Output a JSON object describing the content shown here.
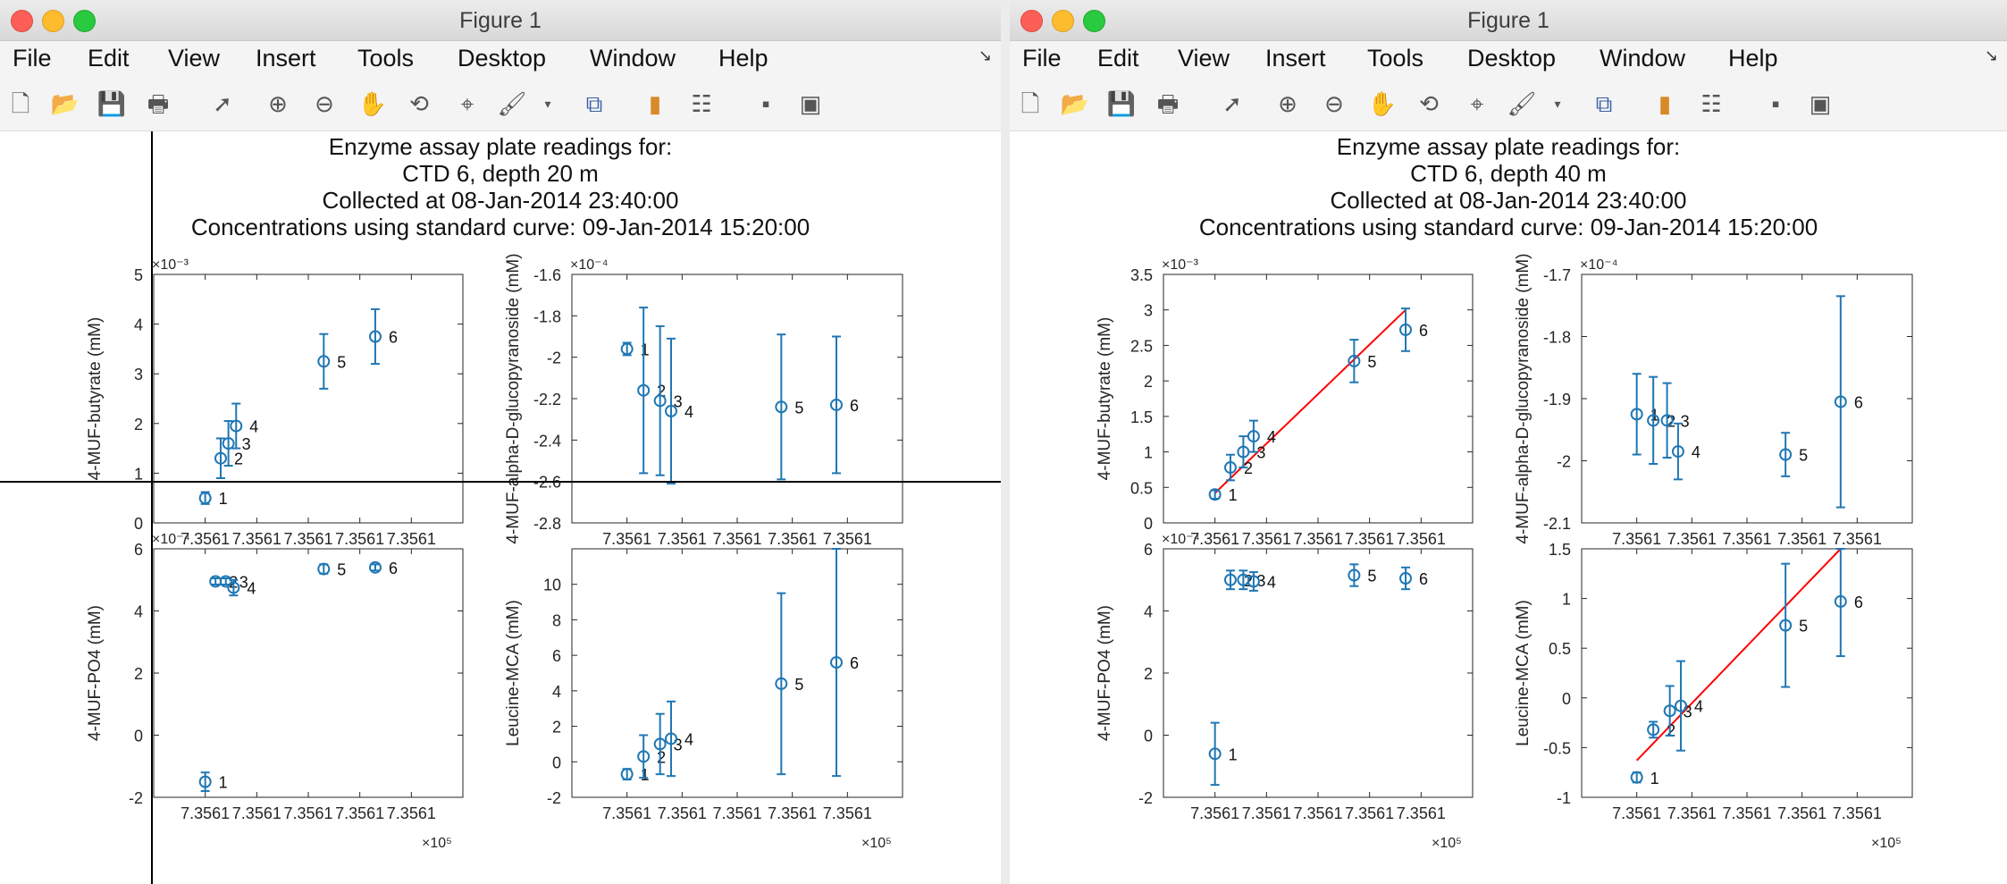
{
  "windows": [
    {
      "title": "Figure 1",
      "menu": [
        "File",
        "Edit",
        "View",
        "Insert",
        "Tools",
        "Desktop",
        "Window",
        "Help"
      ],
      "figure_title": [
        "Enzyme assay plate readings for:",
        "CTD 6, depth 20 m",
        "Collected at 08-Jan-2014 23:40:00",
        "Concentrations using standard curve: 09-Jan-2014 15:20:00"
      ],
      "crosshair": true
    },
    {
      "title": "Figure 1",
      "menu": [
        "File",
        "Edit",
        "View",
        "Insert",
        "Tools",
        "Desktop",
        "Window",
        "Help"
      ],
      "figure_title": [
        "Enzyme assay plate readings for:",
        "CTD 6, depth 40 m",
        "Collected at 08-Jan-2014 23:40:00",
        "Concentrations using standard curve: 09-Jan-2014 15:20:00"
      ],
      "crosshair": false
    }
  ],
  "toolbar_icons": [
    "new-figure-icon",
    "open-icon",
    "save-icon",
    "print-icon",
    "pointer-icon",
    "zoom-in-icon",
    "zoom-out-icon",
    "pan-icon",
    "rotate-icon",
    "data-cursor-icon",
    "brush-icon",
    "brush-menu-icon",
    "link-plot-icon",
    "colorbar-icon",
    "legend-icon",
    "hide-plot-tools-icon",
    "show-plot-tools-icon"
  ],
  "colors": {
    "marker": "#1f77b4",
    "fit_line": "#ff0000",
    "axes": "#262626"
  },
  "chart_data": [
    {
      "type": "scatter",
      "window": 0,
      "ylabel": "4-MUF-butyrate (mM)",
      "y_exponent_label": "×10⁻³",
      "x_exponent_label": "",
      "ylim": [
        0,
        5
      ],
      "yticks": [
        "0",
        "1",
        "2",
        "3",
        "4",
        "5"
      ],
      "xticks": [
        "7.3561",
        "7.3561",
        "7.3561",
        "7.3561",
        "7.3561"
      ],
      "points": [
        {
          "label": "1",
          "x": 1.0,
          "y": 0.5,
          "err": 0.12
        },
        {
          "label": "2",
          "x": 1.3,
          "y": 1.3,
          "err": 0.4
        },
        {
          "label": "3",
          "x": 1.45,
          "y": 1.6,
          "err": 0.45
        },
        {
          "label": "4",
          "x": 1.6,
          "y": 1.95,
          "err": 0.45
        },
        {
          "label": "5",
          "x": 3.3,
          "y": 3.25,
          "err": 0.55
        },
        {
          "label": "6",
          "x": 4.3,
          "y": 3.75,
          "err": 0.55
        }
      ],
      "fit_line": null
    },
    {
      "type": "scatter",
      "window": 0,
      "ylabel": "4-MUF-alpha-D-glucopyranoside (mM)",
      "y_exponent_label": "×10⁻⁴",
      "x_exponent_label": "",
      "ylim": [
        -2.8,
        -1.6
      ],
      "yticks": [
        "-2.8",
        "-2.6",
        "-2.4",
        "-2.2",
        "-2",
        "-1.8",
        "-1.6"
      ],
      "xticks": [
        "7.3561",
        "7.3561",
        "7.3561",
        "7.3561",
        "7.3561"
      ],
      "points": [
        {
          "label": "1",
          "x": 1.0,
          "y": -1.96,
          "err": 0.03
        },
        {
          "label": "2",
          "x": 1.3,
          "y": -2.16,
          "err": 0.4
        },
        {
          "label": "3",
          "x": 1.6,
          "y": -2.21,
          "err": 0.36
        },
        {
          "label": "4",
          "x": 1.8,
          "y": -2.26,
          "err": 0.35
        },
        {
          "label": "5",
          "x": 3.8,
          "y": -2.24,
          "err": 0.35
        },
        {
          "label": "6",
          "x": 4.8,
          "y": -2.23,
          "err": 0.33
        }
      ],
      "fit_line": null
    },
    {
      "type": "scatter",
      "window": 0,
      "ylabel": "4-MUF-PO4 (mM)",
      "y_exponent_label": "×10⁻⁴",
      "x_exponent_label": "×10⁵",
      "ylim": [
        -2,
        6
      ],
      "yticks": [
        "-2",
        "0",
        "2",
        "4",
        "6"
      ],
      "xticks": [
        "7.3561",
        "7.3561",
        "7.3561",
        "7.3561",
        "7.3561"
      ],
      "points": [
        {
          "label": "1",
          "x": 1.0,
          "y": -1.5,
          "err": 0.3
        },
        {
          "label": "2",
          "x": 1.2,
          "y": 4.95,
          "err": 0.1
        },
        {
          "label": "3",
          "x": 1.4,
          "y": 4.95,
          "err": 0.1
        },
        {
          "label": "4",
          "x": 1.55,
          "y": 4.75,
          "err": 0.25
        },
        {
          "label": "5",
          "x": 3.3,
          "y": 5.35,
          "err": 0.15
        },
        {
          "label": "6",
          "x": 4.3,
          "y": 5.4,
          "err": 0.1
        }
      ],
      "fit_line": null
    },
    {
      "type": "scatter",
      "window": 0,
      "ylabel": "Leucine-MCA (mM)",
      "y_exponent_label": "",
      "x_exponent_label": "×10⁵",
      "ylim": [
        -2,
        12
      ],
      "yticks": [
        "-2",
        "0",
        "2",
        "4",
        "6",
        "8",
        "10"
      ],
      "xticks": [
        "7.3561",
        "7.3561",
        "7.3561",
        "7.3561",
        "7.3561"
      ],
      "points": [
        {
          "label": "1",
          "x": 1.0,
          "y": -0.7,
          "err": 0.3
        },
        {
          "label": "2",
          "x": 1.3,
          "y": 0.3,
          "err": 1.2
        },
        {
          "label": "3",
          "x": 1.6,
          "y": 1.0,
          "err": 1.7
        },
        {
          "label": "4",
          "x": 1.8,
          "y": 1.3,
          "err": 2.1
        },
        {
          "label": "5",
          "x": 3.8,
          "y": 4.4,
          "err": 5.1
        },
        {
          "label": "6",
          "x": 4.8,
          "y": 5.6,
          "err": 6.4
        }
      ],
      "fit_line": null
    },
    {
      "type": "scatter",
      "window": 1,
      "ylabel": "4-MUF-butyrate (mM)",
      "y_exponent_label": "×10⁻³",
      "x_exponent_label": "",
      "ylim": [
        0,
        3.5
      ],
      "yticks": [
        "0",
        "0.5",
        "1",
        "1.5",
        "2",
        "2.5",
        "3",
        "3.5"
      ],
      "xticks": [
        "7.3561",
        "7.3561",
        "7.3561",
        "7.3561",
        "7.3561"
      ],
      "points": [
        {
          "label": "1",
          "x": 1.0,
          "y": 0.4,
          "err": 0.06
        },
        {
          "label": "2",
          "x": 1.3,
          "y": 0.78,
          "err": 0.18
        },
        {
          "label": "3",
          "x": 1.55,
          "y": 1.0,
          "err": 0.22
        },
        {
          "label": "4",
          "x": 1.75,
          "y": 1.22,
          "err": 0.22
        },
        {
          "label": "5",
          "x": 3.7,
          "y": 2.28,
          "err": 0.3
        },
        {
          "label": "6",
          "x": 4.7,
          "y": 2.72,
          "err": 0.3
        }
      ],
      "fit_line": {
        "x": [
          1.0,
          4.7
        ],
        "y": [
          0.42,
          3.0
        ]
      }
    },
    {
      "type": "scatter",
      "window": 1,
      "ylabel": "4-MUF-alpha-D-glucopyranoside (mM)",
      "y_exponent_label": "×10⁻⁴",
      "x_exponent_label": "",
      "ylim": [
        -2.1,
        -1.7
      ],
      "yticks": [
        "-2.1",
        "-2",
        "-1.9",
        "-1.8",
        "-1.7"
      ],
      "xticks": [
        "7.3561",
        "7.3561",
        "7.3561",
        "7.3561",
        "7.3561"
      ],
      "points": [
        {
          "label": "1",
          "x": 1.0,
          "y": -1.925,
          "err": 0.065
        },
        {
          "label": "2",
          "x": 1.3,
          "y": -1.935,
          "err": 0.07
        },
        {
          "label": "3",
          "x": 1.55,
          "y": -1.935,
          "err": 0.06
        },
        {
          "label": "4",
          "x": 1.75,
          "y": -1.985,
          "err": 0.045
        },
        {
          "label": "5",
          "x": 3.7,
          "y": -1.99,
          "err": 0.035
        },
        {
          "label": "6",
          "x": 4.7,
          "y": -1.905,
          "err": 0.17
        }
      ],
      "fit_line": null
    },
    {
      "type": "scatter",
      "window": 1,
      "ylabel": "4-MUF-PO4 (mM)",
      "y_exponent_label": "×10⁻⁴",
      "x_exponent_label": "×10⁵",
      "ylim": [
        -2,
        6
      ],
      "yticks": [
        "-2",
        "0",
        "2",
        "4",
        "6"
      ],
      "xticks": [
        "7.3561",
        "7.3561",
        "7.3561",
        "7.3561",
        "7.3561"
      ],
      "points": [
        {
          "label": "1",
          "x": 1.0,
          "y": -0.6,
          "err": 1.0
        },
        {
          "label": "2",
          "x": 1.3,
          "y": 5.0,
          "err": 0.3
        },
        {
          "label": "3",
          "x": 1.55,
          "y": 5.0,
          "err": 0.3
        },
        {
          "label": "4",
          "x": 1.75,
          "y": 4.95,
          "err": 0.3
        },
        {
          "label": "5",
          "x": 3.7,
          "y": 5.15,
          "err": 0.35
        },
        {
          "label": "6",
          "x": 4.7,
          "y": 5.05,
          "err": 0.35
        }
      ],
      "fit_line": null
    },
    {
      "type": "scatter",
      "window": 1,
      "ylabel": "Leucine-MCA (mM)",
      "y_exponent_label": "",
      "x_exponent_label": "×10⁵",
      "ylim": [
        -1,
        1.5
      ],
      "yticks": [
        "-1",
        "-0.5",
        "0",
        "0.5",
        "1",
        "1.5"
      ],
      "xticks": [
        "7.3561",
        "7.3561",
        "7.3561",
        "7.3561",
        "7.3561"
      ],
      "points": [
        {
          "label": "1",
          "x": 1.0,
          "y": -0.8,
          "err": 0.05
        },
        {
          "label": "2",
          "x": 1.3,
          "y": -0.32,
          "err": 0.08
        },
        {
          "label": "3",
          "x": 1.6,
          "y": -0.13,
          "err": 0.25
        },
        {
          "label": "4",
          "x": 1.8,
          "y": -0.08,
          "err": 0.45
        },
        {
          "label": "5",
          "x": 3.7,
          "y": 0.73,
          "err": 0.62
        },
        {
          "label": "6",
          "x": 4.7,
          "y": 0.97,
          "err": 0.55
        }
      ],
      "fit_line": {
        "x": [
          1.0,
          4.7
        ],
        "y": [
          -0.63,
          1.5
        ]
      }
    }
  ]
}
